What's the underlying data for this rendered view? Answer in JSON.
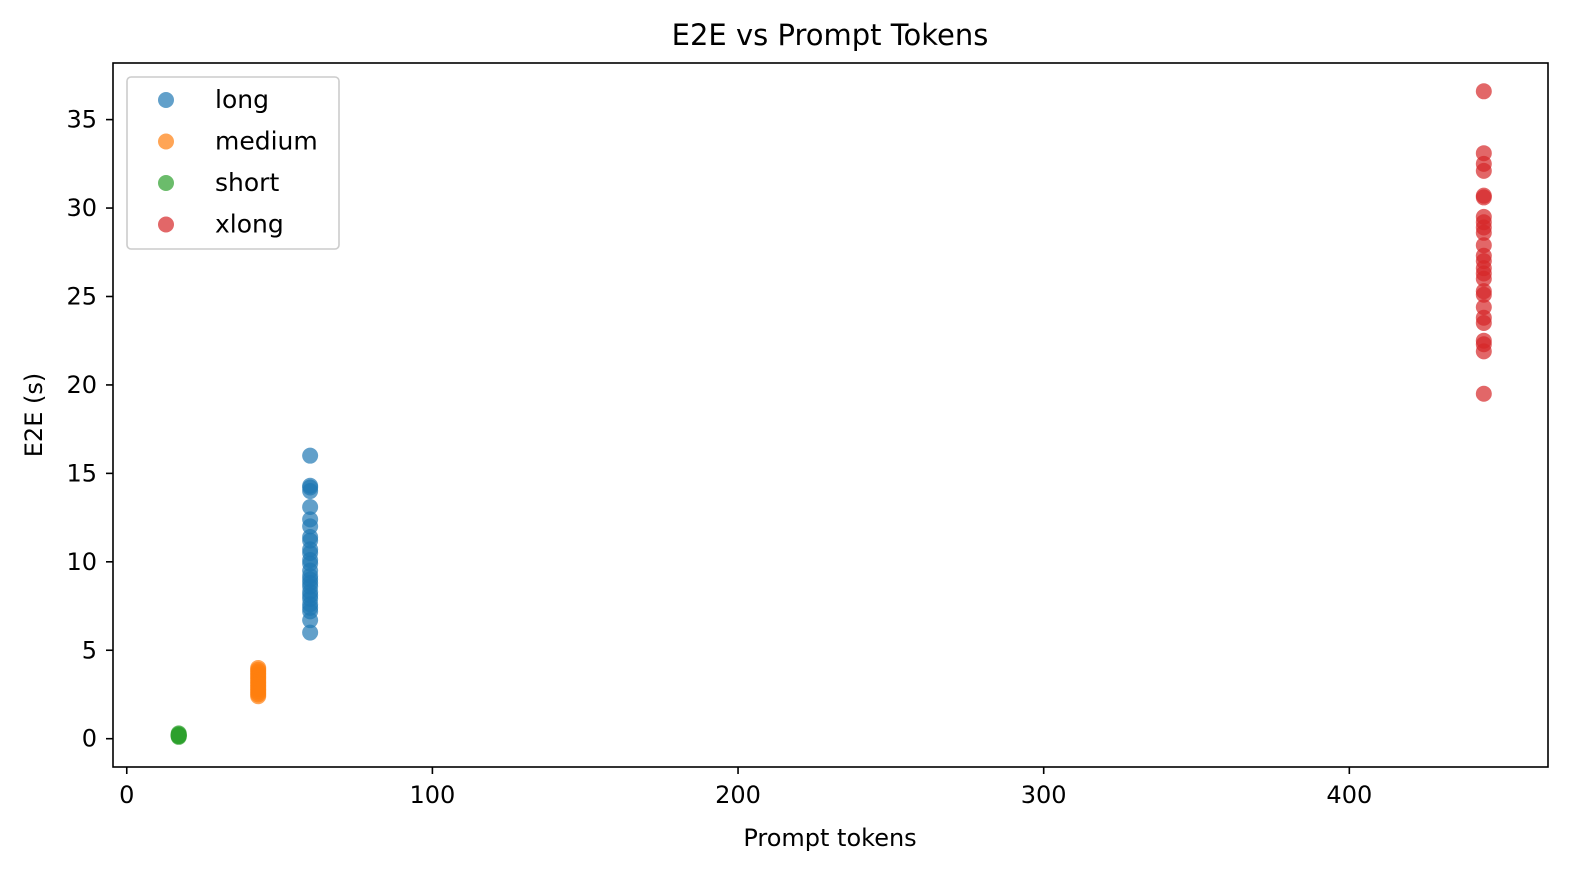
{
  "chart_data": {
    "type": "scatter",
    "title": "E2E vs Prompt Tokens",
    "xlabel": "Prompt tokens",
    "ylabel": "E2E (s)",
    "xlim": [
      -4.5,
      465
    ],
    "ylim": [
      -1.6,
      38.2
    ],
    "xticks": [
      0,
      100,
      200,
      300,
      400
    ],
    "yticks": [
      0,
      5,
      10,
      15,
      20,
      25,
      30,
      35
    ],
    "grid": false,
    "legend_position": "upper-left",
    "series": [
      {
        "name": "long",
        "color": "#1f77b4",
        "x": 60,
        "y": [
          16.0,
          14.3,
          14.2,
          14.0,
          13.1,
          12.4,
          12.0,
          11.4,
          11.2,
          10.7,
          10.5,
          10.1,
          9.9,
          9.5,
          9.2,
          9.0,
          8.8,
          8.6,
          8.3,
          8.1,
          7.9,
          7.6,
          7.4,
          7.2,
          6.7,
          6.0
        ]
      },
      {
        "name": "medium",
        "color": "#ff7f0e",
        "x": 43,
        "y": [
          4.0,
          3.9,
          3.8,
          3.7,
          3.6,
          3.5,
          3.4,
          3.3,
          3.2,
          3.1,
          3.0,
          2.9,
          2.8,
          2.7,
          2.6,
          2.5,
          2.4
        ]
      },
      {
        "name": "short",
        "color": "#2ca02c",
        "x": 17,
        "y": [
          0.3,
          0.25,
          0.2,
          0.2,
          0.15,
          0.15,
          0.1
        ]
      },
      {
        "name": "xlong",
        "color": "#d62728",
        "x": 444,
        "y": [
          36.6,
          33.1,
          32.5,
          32.1,
          30.7,
          30.6,
          29.5,
          29.2,
          28.9,
          28.6,
          27.9,
          27.3,
          27.0,
          26.6,
          26.3,
          26.0,
          25.3,
          25.1,
          24.4,
          23.8,
          23.5,
          22.5,
          22.3,
          21.9,
          19.5
        ]
      }
    ]
  }
}
